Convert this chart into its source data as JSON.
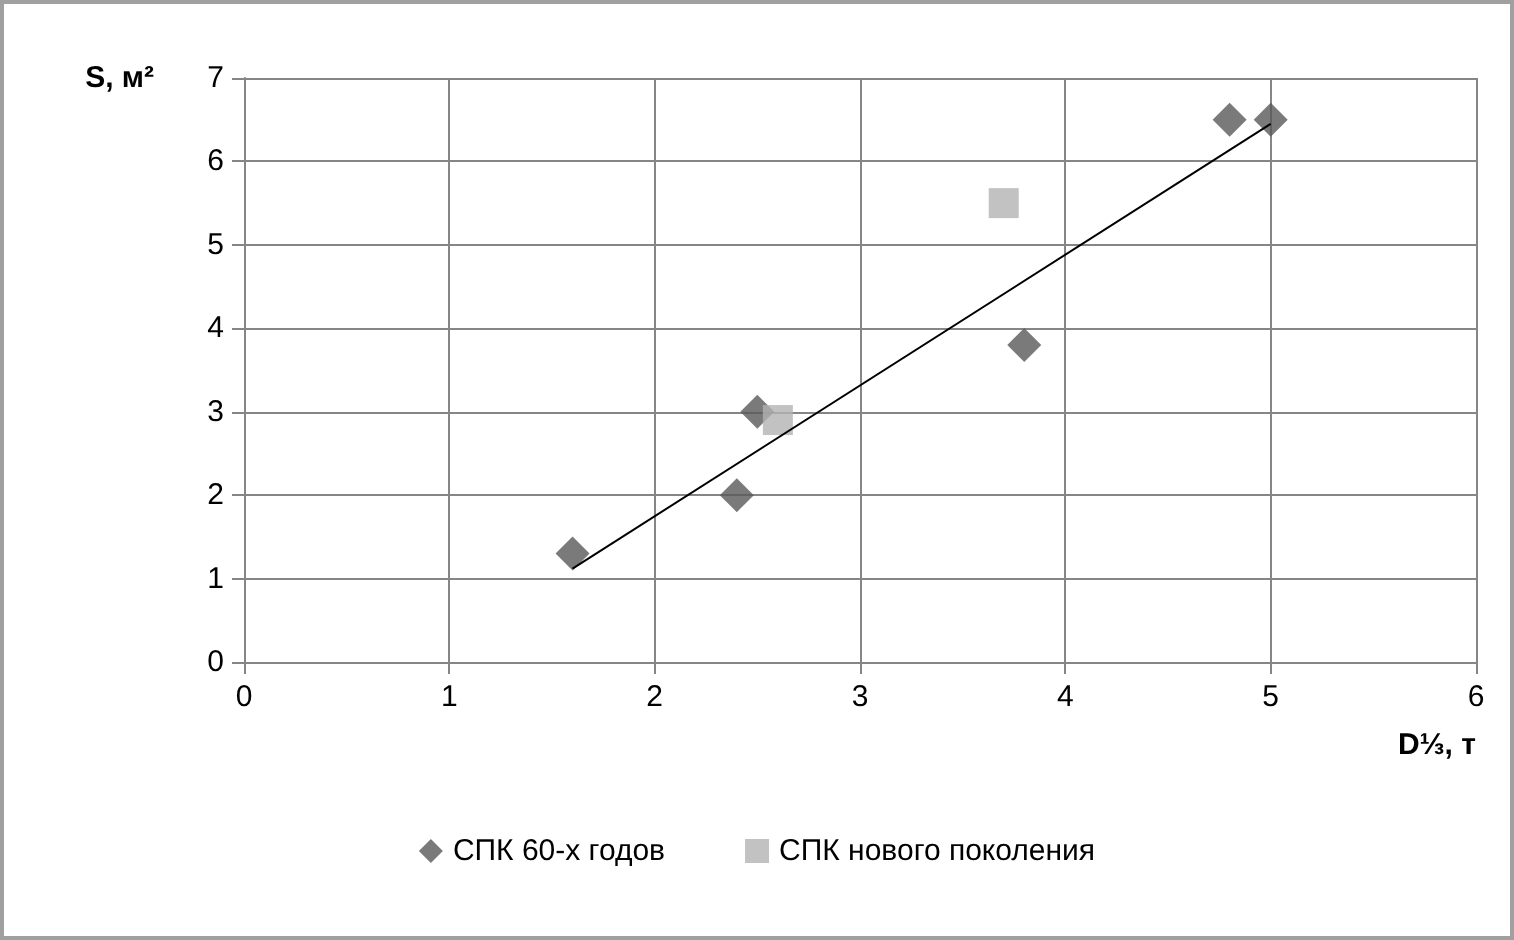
{
  "chart_data": {
    "type": "scatter",
    "xlabel": "D⅓, т",
    "ylabel": "S, м²",
    "xlim": [
      0,
      6
    ],
    "xticks": [
      0,
      1,
      2,
      3,
      4,
      5,
      6
    ],
    "ylim": [
      0,
      7
    ],
    "yticks": [
      0,
      1,
      2,
      3,
      4,
      5,
      6,
      7
    ],
    "grid": true,
    "legend": "bottom",
    "series": [
      {
        "name": "СПК 60-х годов",
        "color": "#595959",
        "marker": "diamond",
        "x": [
          1.6,
          2.4,
          2.5,
          3.8,
          4.8,
          5.0
        ],
        "values": [
          1.3,
          2.0,
          3.0,
          3.8,
          6.5,
          6.5
        ]
      },
      {
        "name": "СПК нового поколения",
        "color": "#b3b3b3",
        "marker": "square",
        "x": [
          2.6,
          3.7
        ],
        "values": [
          2.9,
          5.5
        ]
      },
      {
        "type": "line",
        "color": "#000000",
        "marker": "none",
        "line_style": "solid",
        "x": [
          1.6,
          5.0
        ],
        "values": [
          1.12,
          6.45
        ]
      }
    ]
  }
}
